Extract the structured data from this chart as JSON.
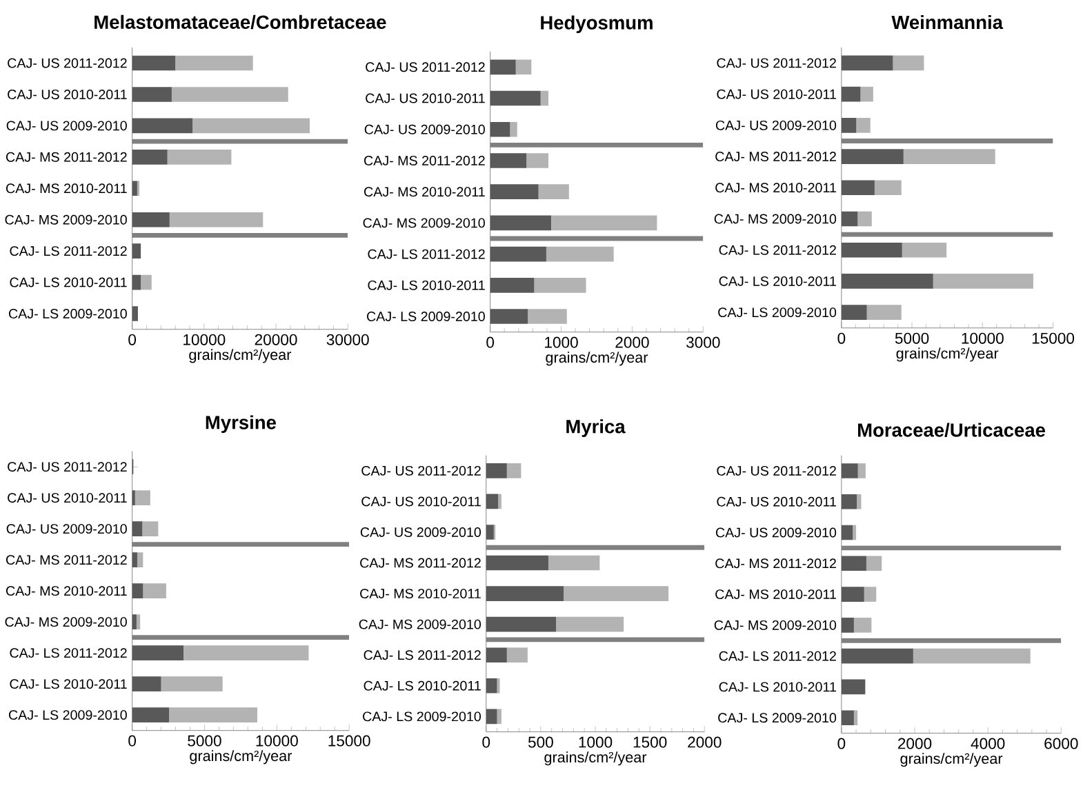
{
  "chart_data": [
    {
      "type": "bar",
      "orientation": "horizontal",
      "stacked": true,
      "title": "Melastomataceae/Combretaceae",
      "xlabel": "grains/cm²/year",
      "categories": [
        "CAJ- US 2011-2012",
        "CAJ- US 2010-2011",
        "CAJ- US 2009-2010",
        "CAJ- MS 2011-2012",
        "CAJ- MS 2010-2011",
        "CAJ- MS 2009-2010",
        "CAJ- LS 2011-2012",
        "CAJ- LS 2010-2011",
        "CAJ- LS 2009-2010"
      ],
      "series": [
        {
          "color": "#595959",
          "values": [
            6000,
            5500,
            8400,
            4900,
            700,
            5200,
            1200,
            1200,
            800
          ]
        },
        {
          "color": "#b3b3b3",
          "values": [
            10800,
            16200,
            16300,
            8900,
            300,
            13000,
            null,
            1500,
            null
          ]
        }
      ],
      "xlim": [
        0,
        30000
      ],
      "xticks": [
        0,
        10000,
        20000,
        30000
      ]
    },
    {
      "type": "bar",
      "orientation": "horizontal",
      "stacked": true,
      "title": "Hedyosmum",
      "xlabel": "grains/cm²/year",
      "categories": [
        "CAJ- US 2011-2012",
        "CAJ- US 2010-2011",
        "CAJ- US 2009-2010",
        "CAJ- MS 2011-2012",
        "CAJ- MS 2010-2011",
        "CAJ- MS 2009-2010",
        "CAJ- LS 2011-2012",
        "CAJ- LS 2010-2011",
        "CAJ- LS 2009-2010"
      ],
      "series": [
        {
          "color": "#595959",
          "values": [
            360,
            710,
            280,
            510,
            680,
            860,
            790,
            620,
            530
          ]
        },
        {
          "color": "#b3b3b3",
          "values": [
            220,
            110,
            100,
            310,
            430,
            1490,
            950,
            730,
            550
          ]
        }
      ],
      "xlim": [
        0,
        3000
      ],
      "xticks": [
        0,
        1000,
        2000,
        3000
      ]
    },
    {
      "type": "bar",
      "orientation": "horizontal",
      "stacked": true,
      "title": "Weinmannia",
      "xlabel": "grains/cm²/year",
      "categories": [
        "CAJ- US 2011-2012",
        "CAJ- US 2010-2011",
        "CAJ- US 2009-2010",
        "CAJ- MS 2011-2012",
        "CAJ- MS 2010-2011",
        "CAJ- MS 2009-2010",
        "CAJ- LS 2011-2012",
        "CAJ- LS 2010-2011",
        "CAJ- LS 2009-2010"
      ],
      "series": [
        {
          "color": "#595959",
          "values": [
            3650,
            1350,
            1050,
            4400,
            2350,
            1150,
            4300,
            6500,
            1800
          ]
        },
        {
          "color": "#b3b3b3",
          "values": [
            2200,
            900,
            1000,
            6500,
            1900,
            1000,
            3150,
            7100,
            2450
          ]
        }
      ],
      "xlim": [
        0,
        15000
      ],
      "xticks": [
        0,
        5000,
        10000,
        15000
      ]
    },
    {
      "type": "bar",
      "orientation": "horizontal",
      "stacked": true,
      "title": "Myrsine",
      "xlabel": "grains/cm²/year",
      "categories": [
        "CAJ- US 2011-2012",
        "CAJ- US 2010-2011",
        "CAJ- US 2009-2010",
        "CAJ- MS 2011-2012",
        "CAJ- MS 2010-2011",
        "CAJ- MS 2009-2010",
        "CAJ- LS 2011-2012",
        "CAJ- LS 2010-2011",
        "CAJ- LS 2009-2010"
      ],
      "series": [
        {
          "color": "#595959",
          "values": [
            80,
            200,
            700,
            350,
            750,
            300,
            3550,
            2000,
            2550
          ]
        },
        {
          "color": "#b3b3b3",
          "values": [
            null,
            1050,
            1100,
            400,
            1600,
            250,
            8650,
            4250,
            6100
          ]
        }
      ],
      "xlim": [
        0,
        15000
      ],
      "xticks": [
        0,
        5000,
        10000,
        15000
      ]
    },
    {
      "type": "bar",
      "orientation": "horizontal",
      "stacked": true,
      "title": "Myrica",
      "xlabel": "grains/cm²/year",
      "categories": [
        "CAJ- US 2011-2012",
        "CAJ- US 2010-2011",
        "CAJ- US 2009-2010",
        "CAJ- MS 2011-2012",
        "CAJ- MS 2010-2011",
        "CAJ- MS 2009-2010",
        "CAJ- LS 2011-2012",
        "CAJ- LS 2010-2011",
        "CAJ- LS 2009-2010"
      ],
      "series": [
        {
          "color": "#595959",
          "values": [
            190,
            110,
            70,
            570,
            710,
            640,
            190,
            100,
            100
          ]
        },
        {
          "color": "#b3b3b3",
          "values": [
            130,
            30,
            15,
            470,
            960,
            620,
            190,
            25,
            40
          ]
        }
      ],
      "xlim": [
        0,
        2000
      ],
      "xticks": [
        0,
        500,
        1000,
        1500,
        2000
      ]
    },
    {
      "type": "bar",
      "orientation": "horizontal",
      "stacked": true,
      "title": "Moraceae/Urticaceae",
      "xlabel": "grains/cm²/year",
      "categories": [
        "CAJ- US 2011-2012",
        "CAJ- US 2010-2011",
        "CAJ- US 2009-2010",
        "CAJ- MS 2011-2012",
        "CAJ- MS 2010-2011",
        "CAJ- MS 2009-2010",
        "CAJ- LS 2011-2012",
        "CAJ- LS 2010-2011",
        "CAJ- LS 2009-2010"
      ],
      "series": [
        {
          "color": "#595959",
          "values": [
            450,
            420,
            310,
            680,
            620,
            340,
            1960,
            650,
            340
          ]
        },
        {
          "color": "#b3b3b3",
          "values": [
            210,
            120,
            90,
            420,
            330,
            480,
            3200,
            null,
            100
          ]
        }
      ],
      "xlim": [
        0,
        6000
      ],
      "xticks": [
        0,
        2000,
        4000,
        6000
      ]
    }
  ]
}
